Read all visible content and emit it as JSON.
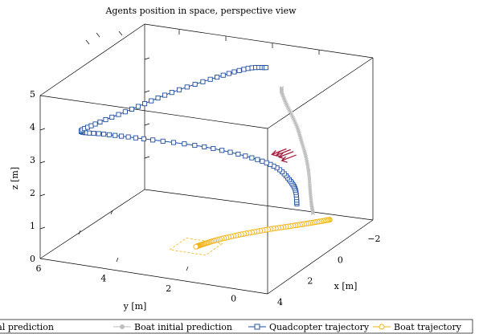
{
  "chart_data": {
    "type": "line",
    "title": "Agents position in space, perspective view",
    "xlabel": "x [m]",
    "ylabel": "y [m]",
    "zlabel": "z [m]",
    "xlim": [
      -3,
      4
    ],
    "ylim": [
      -1,
      6
    ],
    "zlim": [
      0,
      5
    ],
    "x_ticks": [
      "−2",
      "0",
      "2",
      "4"
    ],
    "y_ticks": [
      "6",
      "4",
      "2",
      "0"
    ],
    "z_ticks": [
      "0",
      "1",
      "2",
      "3",
      "4",
      "5"
    ],
    "grid": false,
    "legend_placement": "bottom",
    "legend_labels": {
      "quad_pred": "Quadcopter initial prediction",
      "boat_pred": "Boat initial prediction",
      "quad_traj": "Quadcopter trajectory",
      "boat_traj": "Boat trajectory"
    },
    "series": [
      {
        "name": "Quadcopter initial prediction",
        "color": "#a51e3f",
        "note": "arrows",
        "points": [
          [
            2.2,
            -0.3,
            3.55
          ],
          [
            1.7,
            -0.2,
            3.35
          ],
          [
            1.3,
            -0.1,
            3.15
          ],
          [
            0.9,
            0.0,
            2.9
          ]
        ]
      },
      {
        "name": "Boat initial prediction",
        "color": "#bfbfbf",
        "points": [
          [
            -2.8,
            0.75,
            0.0
          ],
          [
            -2.7,
            0.75,
            0.3
          ],
          [
            -2.5,
            0.7,
            0.8
          ],
          [
            -2.3,
            0.65,
            1.4
          ],
          [
            -2.0,
            0.6,
            2.0
          ],
          [
            -1.6,
            0.55,
            2.6
          ],
          [
            -1.1,
            0.45,
            3.2
          ],
          [
            -0.5,
            0.35,
            3.8
          ],
          [
            0.2,
            0.2,
            4.4
          ],
          [
            0.8,
            0.05,
            4.95
          ],
          [
            1.0,
            -0.05,
            5.15
          ]
        ]
      },
      {
        "name": "Quadcopter trajectory",
        "color": "#1f4ea0",
        "points": [
          [
            -2.7,
            1.2,
            0.25
          ],
          [
            -2.6,
            1.2,
            0.7
          ],
          [
            -2.3,
            1.25,
            1.1
          ],
          [
            -1.8,
            1.4,
            1.6
          ],
          [
            -1.0,
            1.8,
            2.1
          ],
          [
            0.0,
            2.8,
            2.6
          ],
          [
            1.0,
            4.2,
            2.95
          ],
          [
            1.5,
            5.2,
            3.1
          ],
          [
            1.7,
            5.8,
            3.15
          ],
          [
            1.2,
            5.6,
            3.25
          ],
          [
            0.5,
            4.8,
            3.6
          ],
          [
            0.0,
            3.8,
            4.1
          ],
          [
            -0.2,
            2.5,
            4.7
          ],
          [
            -0.1,
            1.5,
            5.15
          ],
          [
            0.0,
            0.9,
            5.3
          ]
        ]
      },
      {
        "name": "Boat trajectory",
        "color": "#f2b51c",
        "points": [
          [
            -2.5,
            0.1,
            0.0
          ],
          [
            -2.1,
            0.4,
            0.0
          ],
          [
            -1.6,
            0.8,
            0.0
          ],
          [
            -1.0,
            1.3,
            0.0
          ],
          [
            -0.3,
            1.8,
            0.0
          ],
          [
            0.4,
            2.2,
            0.0
          ],
          [
            0.9,
            2.4,
            0.0
          ],
          [
            1.2,
            2.5,
            0.0
          ]
        ]
      }
    ],
    "annotations": [
      {
        "type": "dashed-square",
        "color": "#f2b51c",
        "center": [
          1.2,
          2.5,
          0.0
        ]
      }
    ]
  }
}
